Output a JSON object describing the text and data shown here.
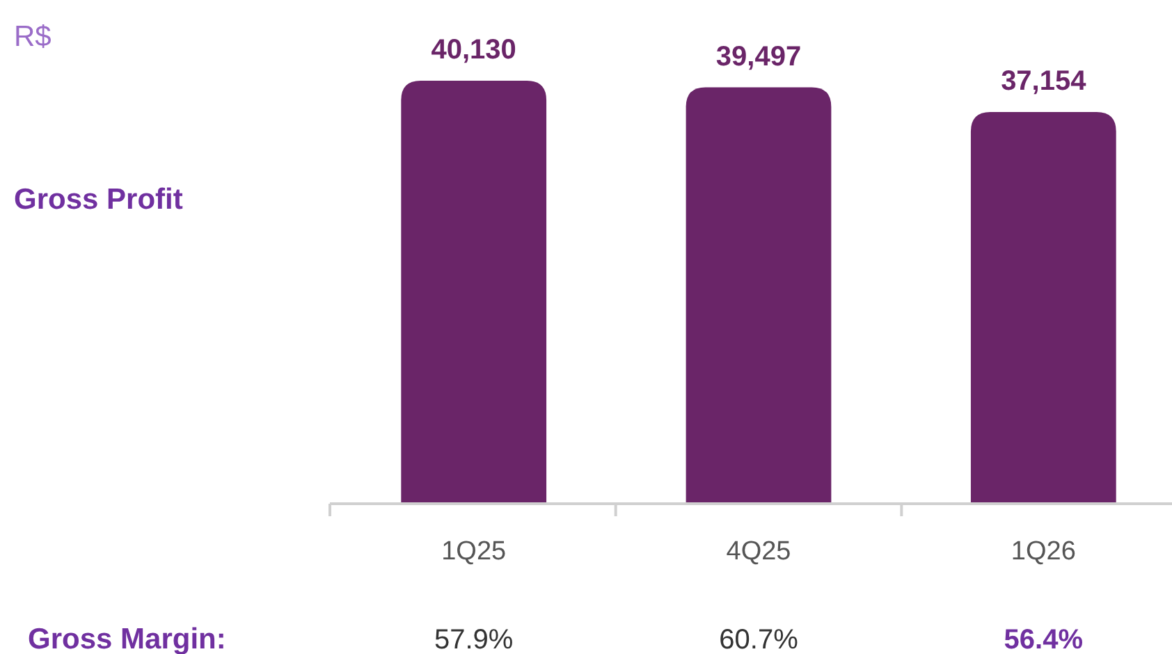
{
  "chart_data": {
    "type": "bar",
    "categories": [
      "1Q25",
      "4Q25",
      "1Q26"
    ],
    "values": [
      40130,
      39497,
      37154
    ],
    "value_labels": [
      "40,130",
      "39,497",
      "37,154"
    ],
    "color": "#6a2568",
    "annotations": [
      "R$",
      "Gross Profit",
      "Gross Margin:",
      "57.9%",
      "60.7%",
      "56.4%"
    ]
  }
}
